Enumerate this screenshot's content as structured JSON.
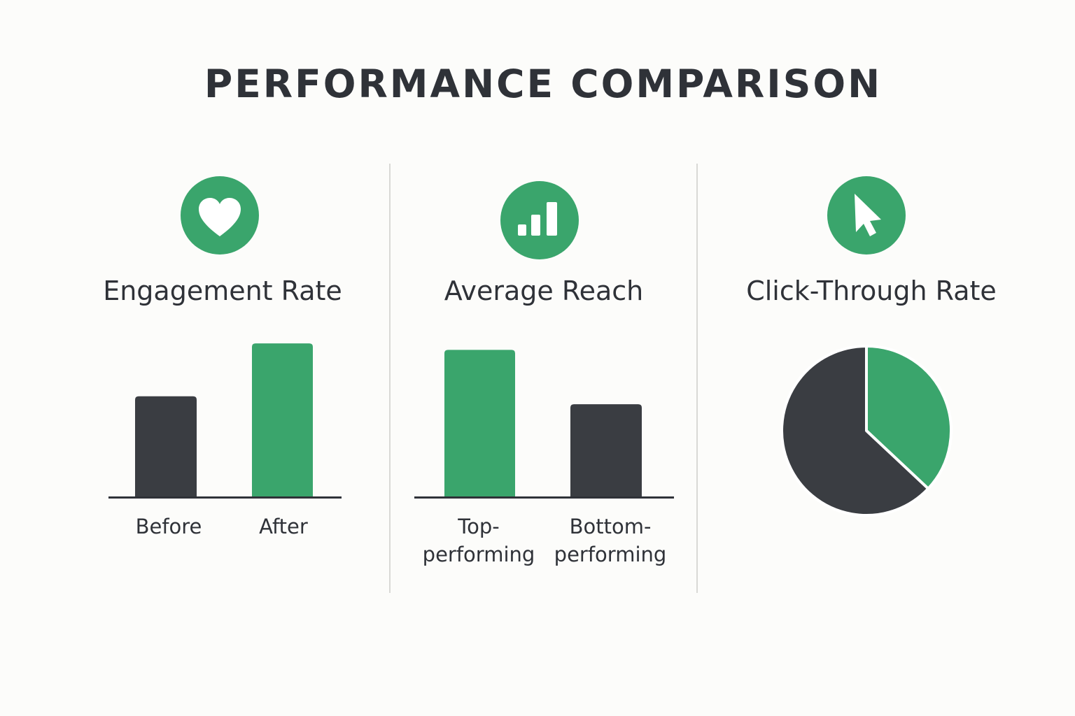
{
  "title": "PERFORMANCE COMPARISON",
  "colors": {
    "accent": "#3aa56c",
    "dark": "#3a3d42",
    "text": "#2f3238",
    "divider": "#d9d9d6",
    "background": "#fcfcfa"
  },
  "panels": [
    {
      "title": "Engagement Rate",
      "icon": "heart-icon"
    },
    {
      "title": "Average Reach",
      "icon": "bar-chart-icon"
    },
    {
      "title": "Click-Through Rate",
      "icon": "cursor-icon"
    }
  ],
  "chart_data": [
    {
      "type": "bar",
      "title": "Engagement Rate",
      "categories": [
        "Before",
        "After"
      ],
      "values": [
        63,
        96
      ],
      "ylim": [
        0,
        100
      ],
      "bar_colors": [
        "#3a3d42",
        "#3aa56c"
      ],
      "grid": false
    },
    {
      "type": "bar",
      "title": "Average Reach",
      "categories": [
        "Top-performing",
        "Bottom-performing"
      ],
      "category_lines": [
        [
          "Top-",
          "performing"
        ],
        [
          "Bottom-",
          "performing"
        ]
      ],
      "values": [
        92,
        58
      ],
      "ylim": [
        0,
        100
      ],
      "bar_colors": [
        "#3aa56c",
        "#3a3d42"
      ],
      "grid": false
    },
    {
      "type": "pie",
      "title": "Click-Through Rate",
      "slices": [
        {
          "value": 37,
          "color": "#3aa56c"
        },
        {
          "value": 63,
          "color": "#3a3d42"
        }
      ]
    }
  ]
}
